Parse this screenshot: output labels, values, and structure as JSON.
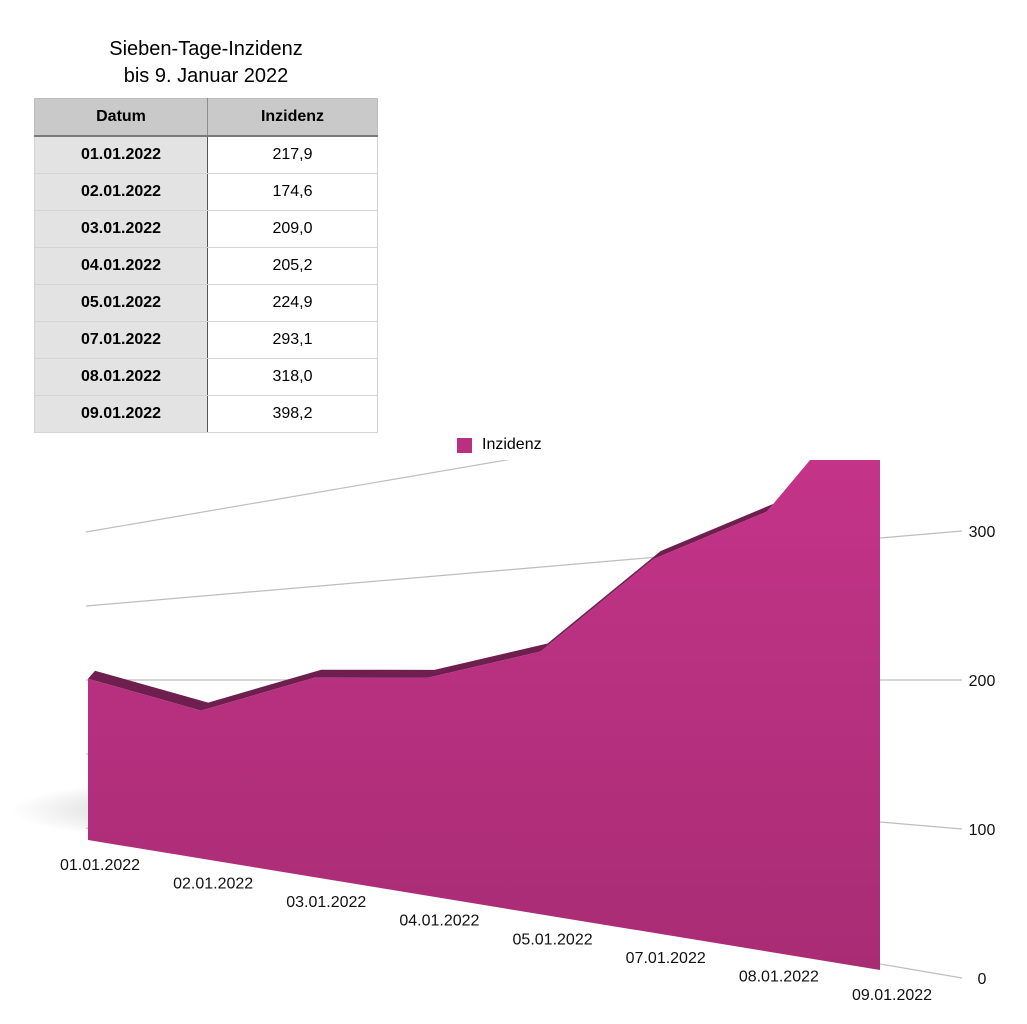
{
  "title_line1": "Sieben-Tage-Inzidenz",
  "title_line2": "bis 9. Januar 2022",
  "table": {
    "headers": [
      "Datum",
      "Inzidenz"
    ],
    "rows": [
      [
        "01.01.2022",
        "217,9"
      ],
      [
        "02.01.2022",
        "174,6"
      ],
      [
        "03.01.2022",
        "209,0"
      ],
      [
        "04.01.2022",
        "205,2"
      ],
      [
        "05.01.2022",
        "224,9"
      ],
      [
        "07.01.2022",
        "293,1"
      ],
      [
        "08.01.2022",
        "318,0"
      ],
      [
        "09.01.2022",
        "398,2"
      ]
    ]
  },
  "chart_data": {
    "type": "area",
    "categories": [
      "01.01.2022",
      "02.01.2022",
      "03.01.2022",
      "04.01.2022",
      "05.01.2022",
      "07.01.2022",
      "08.01.2022",
      "09.01.2022"
    ],
    "series": [
      {
        "name": "Inzidenz",
        "values": [
          217.9,
          174.6,
          209.0,
          205.2,
          224.9,
          293.1,
          318.0,
          398.2
        ],
        "color": "#b8307f"
      }
    ],
    "yticks": [
      0,
      100,
      200,
      300,
      400
    ],
    "ylim": [
      0,
      400
    ],
    "legend": "top-center",
    "grid": true
  }
}
